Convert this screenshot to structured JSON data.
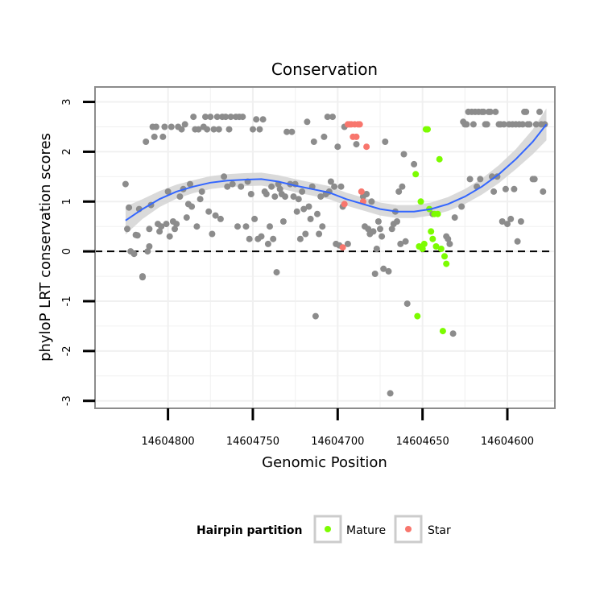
{
  "chart_data": {
    "type": "scatter",
    "title": "Conservation",
    "xlabel": "Genomic Position",
    "ylabel": "phyloP LRT conservation scores",
    "xlim": [
      14604843,
      14604572
    ],
    "x_reversed": true,
    "ylim": [
      -3.15,
      3.3
    ],
    "x_ticks": [
      14604800,
      14604750,
      14604700,
      14604650,
      14604600
    ],
    "x_tick_labels": [
      "14604800",
      "14604750",
      "14604700",
      "14604650",
      "14604600"
    ],
    "y_ticks": [
      -3,
      -2,
      -1,
      0,
      1,
      2,
      3
    ],
    "y_tick_labels": [
      "-3",
      "-2",
      "-1",
      "0",
      "1",
      "2",
      "3"
    ],
    "reference_line": {
      "y": 0,
      "style": "dashed"
    },
    "legend": {
      "title": "Hairpin partition",
      "placement": "bottom",
      "entries": [
        {
          "label": "Mature",
          "color": "#7CFC00"
        },
        {
          "label": "Star",
          "color": "#F8766D"
        }
      ]
    },
    "colors": {
      "other": "#8c8c8c",
      "mature": "#7CFC00",
      "star": "#F8766D",
      "smooth": "#3366ff",
      "ribbon": "#d3d3d3",
      "grid": "#f0f0f0",
      "panel_border": "#8c8c8c"
    },
    "series": [
      {
        "name": "Other",
        "color": "#8c8c8c",
        "points": [
          [
            14604825,
            1.35
          ],
          [
            14604824,
            0.45
          ],
          [
            14604823,
            0.88
          ],
          [
            14604822,
            0.0
          ],
          [
            14604820,
            -0.05
          ],
          [
            14604819,
            0.33
          ],
          [
            14604818,
            0.32
          ],
          [
            14604817,
            0.85
          ],
          [
            14604815,
            -0.5
          ],
          [
            14604815,
            -0.52
          ],
          [
            14604813,
            2.2
          ],
          [
            14604812,
            0.0
          ],
          [
            14604811,
            0.1
          ],
          [
            14604811,
            0.45
          ],
          [
            14604810,
            0.93
          ],
          [
            14604809,
            2.5
          ],
          [
            14604808,
            2.3
          ],
          [
            14604807,
            2.5
          ],
          [
            14604806,
            0.55
          ],
          [
            14604805,
            0.4
          ],
          [
            14604804,
            0.5
          ],
          [
            14604803,
            2.3
          ],
          [
            14604802,
            2.5
          ],
          [
            14604801,
            0.55
          ],
          [
            14604800,
            1.2
          ],
          [
            14604799,
            0.3
          ],
          [
            14604798,
            2.5
          ],
          [
            14604797,
            0.6
          ],
          [
            14604796,
            0.45
          ],
          [
            14604795,
            0.55
          ],
          [
            14604794,
            2.5
          ],
          [
            14604793,
            1.1
          ],
          [
            14604792,
            2.45
          ],
          [
            14604791,
            1.25
          ],
          [
            14604790,
            2.55
          ],
          [
            14604789,
            0.68
          ],
          [
            14604788,
            0.95
          ],
          [
            14604787,
            1.35
          ],
          [
            14604786,
            0.9
          ],
          [
            14604785,
            2.7
          ],
          [
            14604784,
            2.45
          ],
          [
            14604783,
            0.5
          ],
          [
            14604782,
            2.45
          ],
          [
            14604781,
            1.05
          ],
          [
            14604780,
            1.2
          ],
          [
            14604779,
            2.5
          ],
          [
            14604778,
            2.7
          ],
          [
            14604777,
            2.45
          ],
          [
            14604776,
            0.8
          ],
          [
            14604775,
            2.7
          ],
          [
            14604774,
            0.35
          ],
          [
            14604773,
            2.45
          ],
          [
            14604772,
            0.72
          ],
          [
            14604771,
            2.7
          ],
          [
            14604770,
            2.45
          ],
          [
            14604769,
            0.65
          ],
          [
            14604768,
            2.7
          ],
          [
            14604767,
            1.5
          ],
          [
            14604766,
            2.7
          ],
          [
            14604765,
            1.3
          ],
          [
            14604764,
            2.45
          ],
          [
            14604763,
            2.7
          ],
          [
            14604762,
            1.35
          ],
          [
            14604760,
            2.7
          ],
          [
            14604759,
            0.5
          ],
          [
            14604758,
            2.7
          ],
          [
            14604757,
            1.3
          ],
          [
            14604756,
            2.7
          ],
          [
            14604754,
            0.5
          ],
          [
            14604753,
            1.4
          ],
          [
            14604752,
            0.25
          ],
          [
            14604751,
            1.15
          ],
          [
            14604750,
            2.45
          ],
          [
            14604749,
            0.65
          ],
          [
            14604748,
            2.65
          ],
          [
            14604747,
            0.25
          ],
          [
            14604746,
            2.45
          ],
          [
            14604745,
            0.3
          ],
          [
            14604744,
            2.65
          ],
          [
            14604743,
            1.2
          ],
          [
            14604742,
            1.15
          ],
          [
            14604741,
            0.15
          ],
          [
            14604740,
            0.5
          ],
          [
            14604739,
            1.3
          ],
          [
            14604738,
            0.25
          ],
          [
            14604737,
            1.1
          ],
          [
            14604736,
            -0.42
          ],
          [
            14604735,
            1.35
          ],
          [
            14604734,
            1.25
          ],
          [
            14604733,
            1.15
          ],
          [
            14604732,
            0.6
          ],
          [
            14604731,
            1.1
          ],
          [
            14604730,
            2.4
          ],
          [
            14604728,
            1.35
          ],
          [
            14604727,
            2.4
          ],
          [
            14604726,
            1.1
          ],
          [
            14604725,
            1.35
          ],
          [
            14604724,
            0.8
          ],
          [
            14604723,
            1.05
          ],
          [
            14604722,
            0.25
          ],
          [
            14604721,
            1.2
          ],
          [
            14604720,
            0.85
          ],
          [
            14604719,
            0.35
          ],
          [
            14604718,
            2.6
          ],
          [
            14604717,
            0.9
          ],
          [
            14604716,
            0.65
          ],
          [
            14604715,
            1.3
          ],
          [
            14604714,
            2.2
          ],
          [
            14604713,
            -1.3
          ],
          [
            14604712,
            0.75
          ],
          [
            14604711,
            0.35
          ],
          [
            14604710,
            1.1
          ],
          [
            14604709,
            0.5
          ],
          [
            14604708,
            2.3
          ],
          [
            14604707,
            1.15
          ],
          [
            14604706,
            2.7
          ],
          [
            14604705,
            1.2
          ],
          [
            14604704,
            1.4
          ],
          [
            14604703,
            2.7
          ],
          [
            14604702,
            1.3
          ],
          [
            14604701,
            0.15
          ],
          [
            14604700,
            2.1
          ],
          [
            14604699,
            0.12
          ],
          [
            14604698,
            1.3
          ],
          [
            14604697,
            0.9
          ],
          [
            14604696,
            2.5
          ],
          [
            14604694,
            0.15
          ],
          [
            14604689,
            2.15
          ],
          [
            14604685,
            1.1
          ],
          [
            14604684,
            0.5
          ],
          [
            14604683,
            1.15
          ],
          [
            14604682,
            0.45
          ],
          [
            14604681,
            0.35
          ],
          [
            14604680,
            1.0
          ],
          [
            14604679,
            0.4
          ],
          [
            14604678,
            -0.45
          ],
          [
            14604677,
            0.05
          ],
          [
            14604676,
            0.6
          ],
          [
            14604675,
            0.45
          ],
          [
            14604674,
            0.3
          ],
          [
            14604673,
            -0.35
          ],
          [
            14604672,
            2.2
          ],
          [
            14604670,
            -0.4
          ],
          [
            14604669,
            -2.85
          ],
          [
            14604668,
            0.45
          ],
          [
            14604667,
            0.55
          ],
          [
            14604666,
            0.8
          ],
          [
            14604665,
            0.6
          ],
          [
            14604664,
            1.2
          ],
          [
            14604663,
            0.15
          ],
          [
            14604662,
            1.3
          ],
          [
            14604661,
            1.95
          ],
          [
            14604660,
            0.2
          ],
          [
            14604659,
            -1.05
          ],
          [
            14604655,
            1.75
          ],
          [
            14604644,
            0.75
          ],
          [
            14604636,
            0.3
          ],
          [
            14604635,
            0.25
          ],
          [
            14604634,
            0.15
          ],
          [
            14604632,
            -1.65
          ],
          [
            14604631,
            0.68
          ],
          [
            14604627,
            0.9
          ],
          [
            14604626,
            2.6
          ],
          [
            14604625,
            2.55
          ],
          [
            14604624,
            2.55
          ],
          [
            14604623,
            2.8
          ],
          [
            14604622,
            1.45
          ],
          [
            14604621,
            2.8
          ],
          [
            14604620,
            2.55
          ],
          [
            14604619,
            2.8
          ],
          [
            14604618,
            1.3
          ],
          [
            14604617,
            2.8
          ],
          [
            14604616,
            1.45
          ],
          [
            14604615,
            2.8
          ],
          [
            14604614,
            2.8
          ],
          [
            14604613,
            2.55
          ],
          [
            14604612,
            2.55
          ],
          [
            14604611,
            2.8
          ],
          [
            14604610,
            2.8
          ],
          [
            14604609,
            1.5
          ],
          [
            14604608,
            1.2
          ],
          [
            14604607,
            2.8
          ],
          [
            14604606,
            1.5
          ],
          [
            14604605,
            2.55
          ],
          [
            14604604,
            2.55
          ],
          [
            14604603,
            0.6
          ],
          [
            14604602,
            2.55
          ],
          [
            14604601,
            1.25
          ],
          [
            14604600,
            0.55
          ],
          [
            14604599,
            2.55
          ],
          [
            14604598,
            0.65
          ],
          [
            14604597,
            2.55
          ],
          [
            14604596,
            1.25
          ],
          [
            14604595,
            2.55
          ],
          [
            14604594,
            0.2
          ],
          [
            14604593,
            2.55
          ],
          [
            14604592,
            0.6
          ],
          [
            14604591,
            2.55
          ],
          [
            14604590,
            2.8
          ],
          [
            14604589,
            2.8
          ],
          [
            14604588,
            2.55
          ],
          [
            14604587,
            2.55
          ],
          [
            14604585,
            1.45
          ],
          [
            14604584,
            1.45
          ],
          [
            14604583,
            2.55
          ],
          [
            14604581,
            2.8
          ],
          [
            14604580,
            2.55
          ],
          [
            14604579,
            1.2
          ],
          [
            14604578,
            2.55
          ]
        ]
      },
      {
        "name": "Mature",
        "color": "#7CFC00",
        "points": [
          [
            14604654,
            1.55
          ],
          [
            14604653,
            -1.3
          ],
          [
            14604652,
            0.1
          ],
          [
            14604651,
            1.0
          ],
          [
            14604650,
            0.05
          ],
          [
            14604649,
            0.15
          ],
          [
            14604648,
            2.45
          ],
          [
            14604647,
            2.45
          ],
          [
            14604646,
            0.85
          ],
          [
            14604645,
            0.4
          ],
          [
            14604644,
            0.25
          ],
          [
            14604643,
            0.75
          ],
          [
            14604642,
            0.1
          ],
          [
            14604641,
            0.75
          ],
          [
            14604640,
            1.85
          ],
          [
            14604639,
            0.05
          ],
          [
            14604638,
            -1.6
          ],
          [
            14604637,
            -0.1
          ],
          [
            14604636,
            -0.25
          ]
        ]
      },
      {
        "name": "Star",
        "color": "#F8766D",
        "points": [
          [
            14604697,
            0.08
          ],
          [
            14604696,
            0.95
          ],
          [
            14604694,
            2.55
          ],
          [
            14604693,
            2.55
          ],
          [
            14604692,
            2.55
          ],
          [
            14604691,
            2.3
          ],
          [
            14604690,
            2.55
          ],
          [
            14604689,
            2.3
          ],
          [
            14604688,
            2.55
          ],
          [
            14604687,
            2.55
          ],
          [
            14604686,
            1.2
          ],
          [
            14604685,
            1.0
          ],
          [
            14604683,
            2.1
          ]
        ]
      }
    ],
    "smooth_fit": {
      "method": "loess",
      "points": [
        [
          14604825,
          0.62
        ],
        [
          14604815,
          0.85
        ],
        [
          14604805,
          1.05
        ],
        [
          14604795,
          1.2
        ],
        [
          14604785,
          1.3
        ],
        [
          14604775,
          1.38
        ],
        [
          14604765,
          1.42
        ],
        [
          14604755,
          1.44
        ],
        [
          14604745,
          1.45
        ],
        [
          14604735,
          1.4
        ],
        [
          14604725,
          1.32
        ],
        [
          14604715,
          1.25
        ],
        [
          14604705,
          1.18
        ],
        [
          14604695,
          1.05
        ],
        [
          14604685,
          0.95
        ],
        [
          14604675,
          0.85
        ],
        [
          14604665,
          0.8
        ],
        [
          14604655,
          0.8
        ],
        [
          14604645,
          0.85
        ],
        [
          14604635,
          0.95
        ],
        [
          14604625,
          1.1
        ],
        [
          14604615,
          1.3
        ],
        [
          14604605,
          1.55
        ],
        [
          14604595,
          1.85
        ],
        [
          14604585,
          2.2
        ],
        [
          14604577,
          2.55
        ]
      ],
      "ribbon_halfwidth": [
        0.28,
        0.2,
        0.16,
        0.14,
        0.13,
        0.13,
        0.13,
        0.13,
        0.13,
        0.13,
        0.13,
        0.13,
        0.13,
        0.13,
        0.13,
        0.13,
        0.13,
        0.13,
        0.13,
        0.14,
        0.15,
        0.16,
        0.18,
        0.2,
        0.25,
        0.32
      ]
    }
  }
}
